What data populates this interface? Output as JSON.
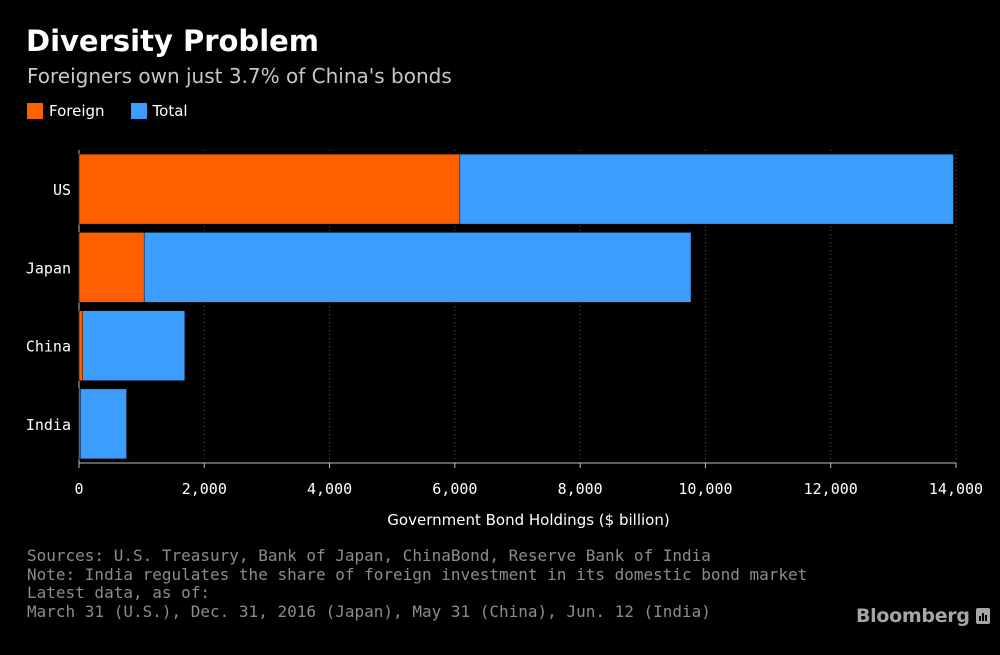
{
  "header": {
    "title": "Diversity Problem",
    "subtitle": "Foreigners own just 3.7% of China's bonds"
  },
  "colors": {
    "foreign": "#ff5f00",
    "total": "#3b9eff",
    "background": "#000000"
  },
  "chart_data": {
    "type": "bar",
    "orientation": "horizontal",
    "stacked": true,
    "categories": [
      "US",
      "Japan",
      "China",
      "India"
    ],
    "series": [
      {
        "name": "Foreign",
        "values": [
          6080,
          1040,
          60,
          20
        ]
      },
      {
        "name": "Total",
        "values": [
          13960,
          9770,
          1690,
          760
        ]
      }
    ],
    "xlabel": "Government Bond Holdings ($ billion)",
    "ylabel": "",
    "xlim": [
      0,
      14000
    ],
    "xticks": [
      0,
      2000,
      4000,
      6000,
      8000,
      10000,
      12000,
      14000
    ],
    "xtick_labels": [
      "0",
      "2,000",
      "4,000",
      "6,000",
      "8,000",
      "10,000",
      "12,000",
      "14,000"
    ],
    "grid": "vertical dotted",
    "legend_position": "top-left"
  },
  "footnotes": [
    "Sources: U.S. Treasury, Bank of Japan, ChinaBond, Reserve Bank of India",
    "Note: India regulates the share of foreign investment in its domestic bond market",
    "Latest data, as of:",
    "March 31 (U.S.), Dec. 31, 2016 (Japan), May 31 (China), Jun. 12 (India)"
  ],
  "brand": {
    "name": "Bloomberg",
    "icon": "bloomberg-chart-icon"
  }
}
